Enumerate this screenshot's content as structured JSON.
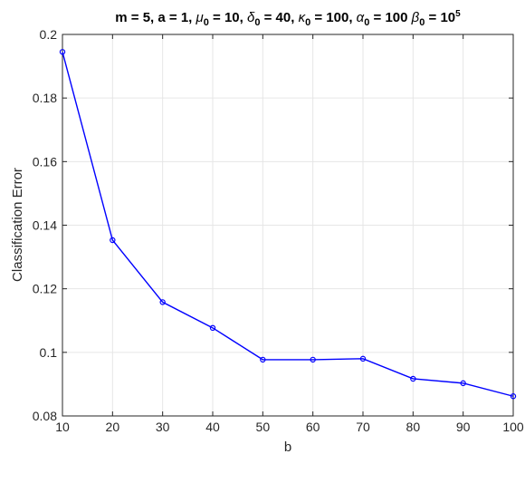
{
  "chart_data": {
    "type": "line",
    "title": {
      "parts": [
        {
          "text": "m = 5, a = 1, "
        },
        {
          "text": "μ",
          "greek": true
        },
        {
          "text": "0",
          "sub": true
        },
        {
          "text": " = 10, "
        },
        {
          "text": "δ",
          "greek": true
        },
        {
          "text": "0",
          "sub": true
        },
        {
          "text": " = 40, "
        },
        {
          "text": "κ",
          "greek": true
        },
        {
          "text": "0",
          "sub": true
        },
        {
          "text": " = 100, "
        },
        {
          "text": "α",
          "greek": true
        },
        {
          "text": "0",
          "sub": true
        },
        {
          "text": " = 100 "
        },
        {
          "text": "β",
          "greek": true
        },
        {
          "text": "0",
          "sub": true
        },
        {
          "text": " = 10"
        },
        {
          "text": "5",
          "sup": true
        }
      ]
    },
    "xlabel": "b",
    "ylabel": "Classification Error",
    "xlim": [
      10,
      100
    ],
    "ylim": [
      0.08,
      0.2
    ],
    "xticks": [
      10,
      20,
      30,
      40,
      50,
      60,
      70,
      80,
      90,
      100
    ],
    "yticks": [
      0.08,
      0.1,
      0.12,
      0.14,
      0.16,
      0.18,
      0.2
    ],
    "ytick_labels": [
      "0.08",
      "0.1",
      "0.12",
      "0.14",
      "0.16",
      "0.18",
      "0.2"
    ],
    "grid": true,
    "series": [
      {
        "color": "#0000ff",
        "marker": "circle",
        "x": [
          10,
          20,
          30,
          40,
          50,
          60,
          70,
          80,
          90,
          100
        ],
        "y": [
          0.1945,
          0.1353,
          0.1158,
          0.1077,
          0.0977,
          0.0977,
          0.098,
          0.0917,
          0.0903,
          0.0862
        ]
      }
    ]
  }
}
